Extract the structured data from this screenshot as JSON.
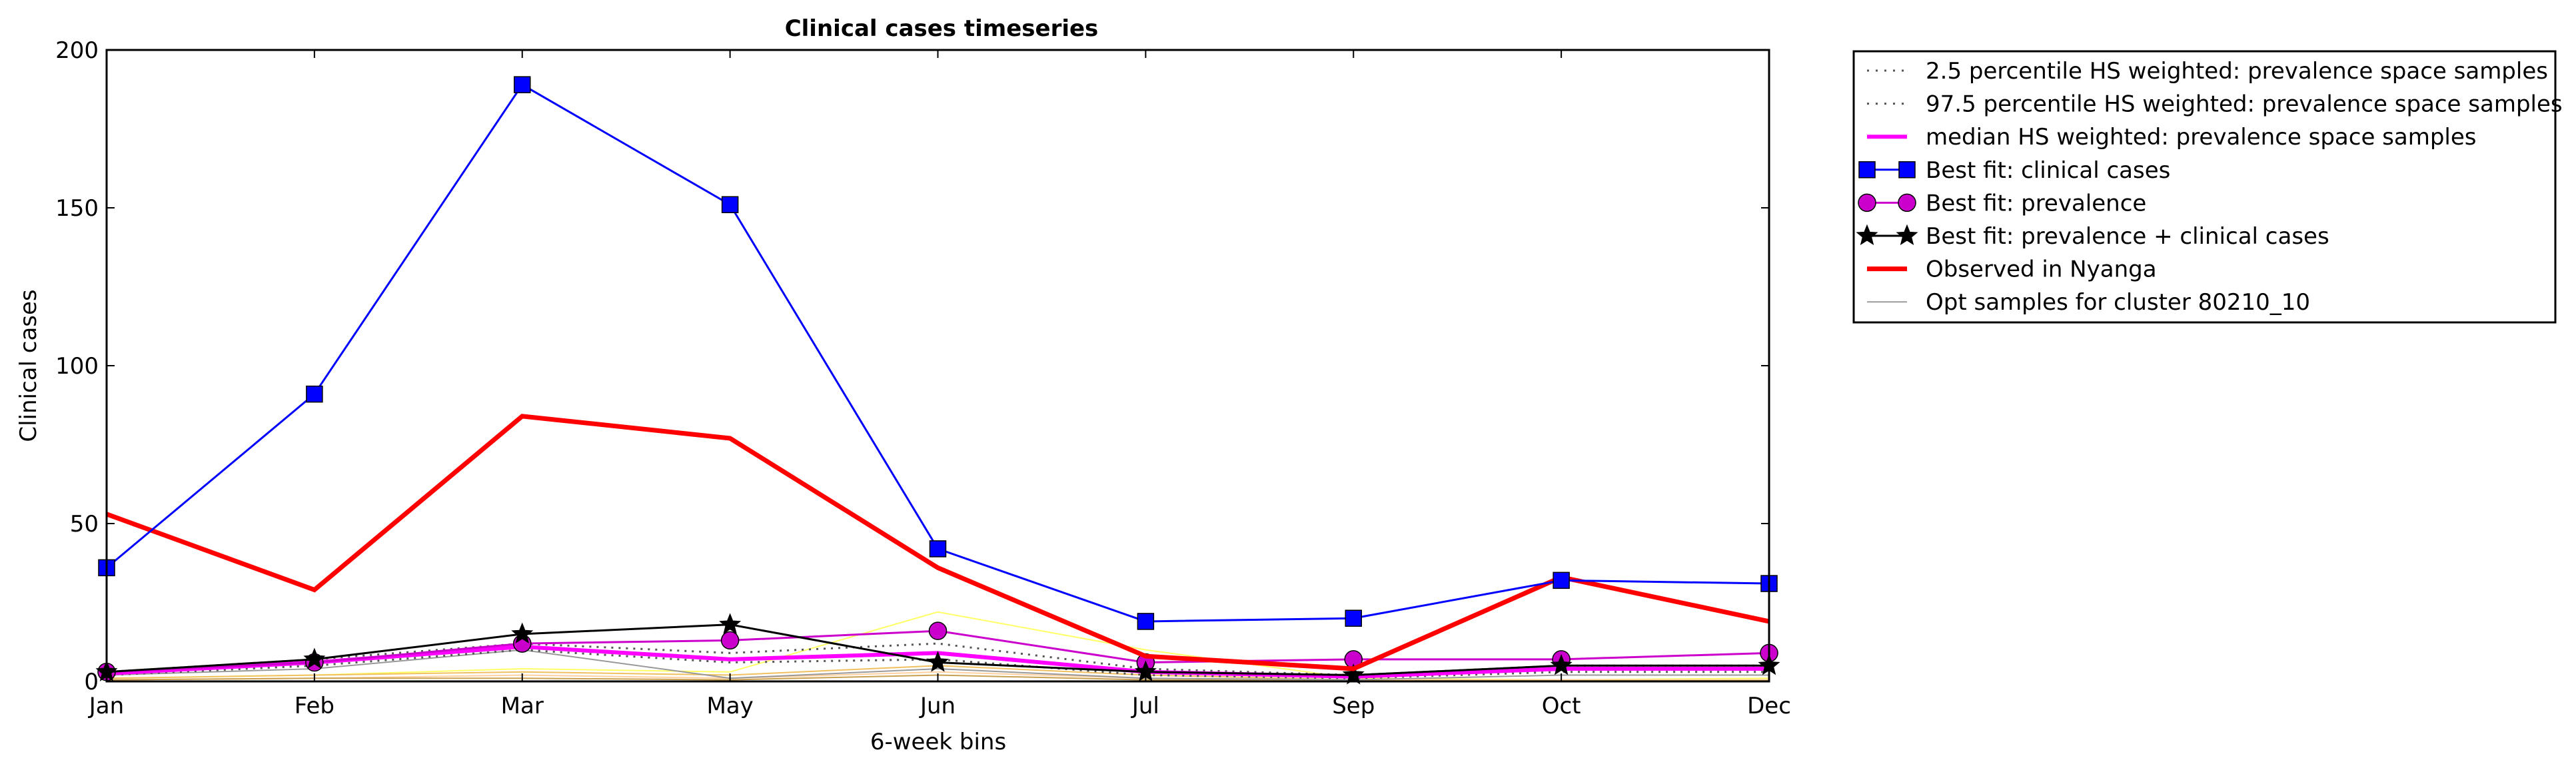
{
  "chart_data": {
    "type": "line",
    "title": "Clinical cases timeseries",
    "xlabel": "6-week bins",
    "ylabel": "Clinical cases",
    "categories": [
      "Jan",
      "Feb",
      "Mar",
      "May",
      "Jun",
      "Jul",
      "Sep",
      "Oct",
      "Dec"
    ],
    "yticks": [
      "0",
      "50",
      "100",
      "150",
      "200"
    ],
    "ylim": [
      0,
      200
    ],
    "grid": false,
    "legend_position": "outside-top-right",
    "series": [
      {
        "name": "2.5 percentile HS weighted: prevalence space samples",
        "color": "#555555",
        "style": "dotted",
        "values": [
          2,
          5,
          10,
          6,
          7,
          2,
          1,
          3,
          3
        ]
      },
      {
        "name": "97.5 percentile HS weighted: prevalence space samples",
        "color": "#555555",
        "style": "dotted",
        "values": [
          3,
          7,
          12,
          9,
          12,
          4,
          2,
          5,
          5
        ]
      },
      {
        "name": "median HS weighted: prevalence space samples",
        "color": "#ff00ff",
        "style": "solid-thick",
        "values": [
          2.5,
          6,
          11,
          7,
          9,
          3,
          1.5,
          4,
          4
        ]
      },
      {
        "name": "Best fit: clinical cases",
        "color": "#0000ff",
        "marker": "square",
        "values": [
          36,
          91,
          189,
          151,
          42,
          19,
          20,
          32,
          31
        ]
      },
      {
        "name": "Best fit: prevalence",
        "color": "#cc00cc",
        "marker": "circle",
        "values": [
          3,
          6,
          12,
          13,
          16,
          6,
          7,
          7,
          9
        ]
      },
      {
        "name": "Best fit: prevalence + clinical cases",
        "color": "#000000",
        "marker": "star",
        "values": [
          3,
          7,
          15,
          18,
          6,
          3,
          2,
          5,
          5
        ]
      },
      {
        "name": "Observed in Nyanga",
        "color": "#ff0000",
        "style": "thick",
        "values": [
          53,
          29,
          84,
          77,
          36,
          8,
          4,
          33,
          19
        ]
      },
      {
        "name": "Opt samples for cluster 80210_10",
        "color": "#999999",
        "style": "thin",
        "values": [
          2,
          4,
          10,
          1,
          4,
          1,
          0.5,
          2,
          2
        ]
      }
    ],
    "background_samples": [
      {
        "color": "#ffff66",
        "values": [
          1,
          2,
          4,
          3,
          22,
          10,
          1,
          0.5,
          1
        ]
      },
      {
        "color": "#f0c060",
        "values": [
          1,
          2,
          3,
          2,
          5,
          2,
          0.5,
          0.5,
          0.5
        ]
      },
      {
        "color": "#ffd0a0",
        "values": [
          0.5,
          1,
          2,
          1,
          3,
          1,
          0.5,
          0.5,
          0.5
        ]
      },
      {
        "color": "#c8a050",
        "values": [
          0.5,
          1,
          1,
          0.5,
          2,
          0.5,
          0.2,
          0.2,
          0.2
        ]
      }
    ]
  }
}
